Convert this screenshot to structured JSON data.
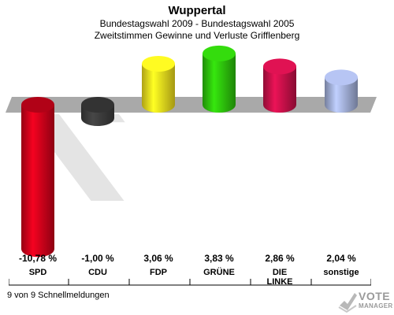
{
  "header": {
    "title": "Wuppertal",
    "subtitle_line1": "Bundestagswahl 2009 - Bundestagswahl 2005",
    "subtitle_line2": "Zweitstimmen Gewinne und Verluste Grifflenberg"
  },
  "footer": {
    "status": "9 von 9 Schnellmeldungen"
  },
  "logo": {
    "line1": "VOTE",
    "line2": "MANAGER"
  },
  "chart_data": {
    "type": "bar",
    "categories": [
      "SPD",
      "CDU",
      "FDP",
      "GRÜNE",
      "DIE LINKE",
      "sonstige"
    ],
    "category_lines": [
      [
        "SPD"
      ],
      [
        "CDU"
      ],
      [
        "FDP"
      ],
      [
        "GRÜNE"
      ],
      [
        "DIE",
        "LINKE"
      ],
      [
        "sonstige"
      ]
    ],
    "values": [
      -10.78,
      -1.0,
      3.06,
      3.83,
      2.86,
      2.04
    ],
    "value_labels": [
      "-10,78 %",
      "-1,00 %",
      "3,06 %",
      "3,83 %",
      "2,86 %",
      "2,04 %"
    ],
    "colors": [
      "#d0021b",
      "#3c3c3c",
      "#f2e01e",
      "#2ec40c",
      "#c8104a",
      "#a3b0da"
    ],
    "ylim": [
      -10.78,
      3.83
    ],
    "grid": false,
    "legend": "none"
  }
}
